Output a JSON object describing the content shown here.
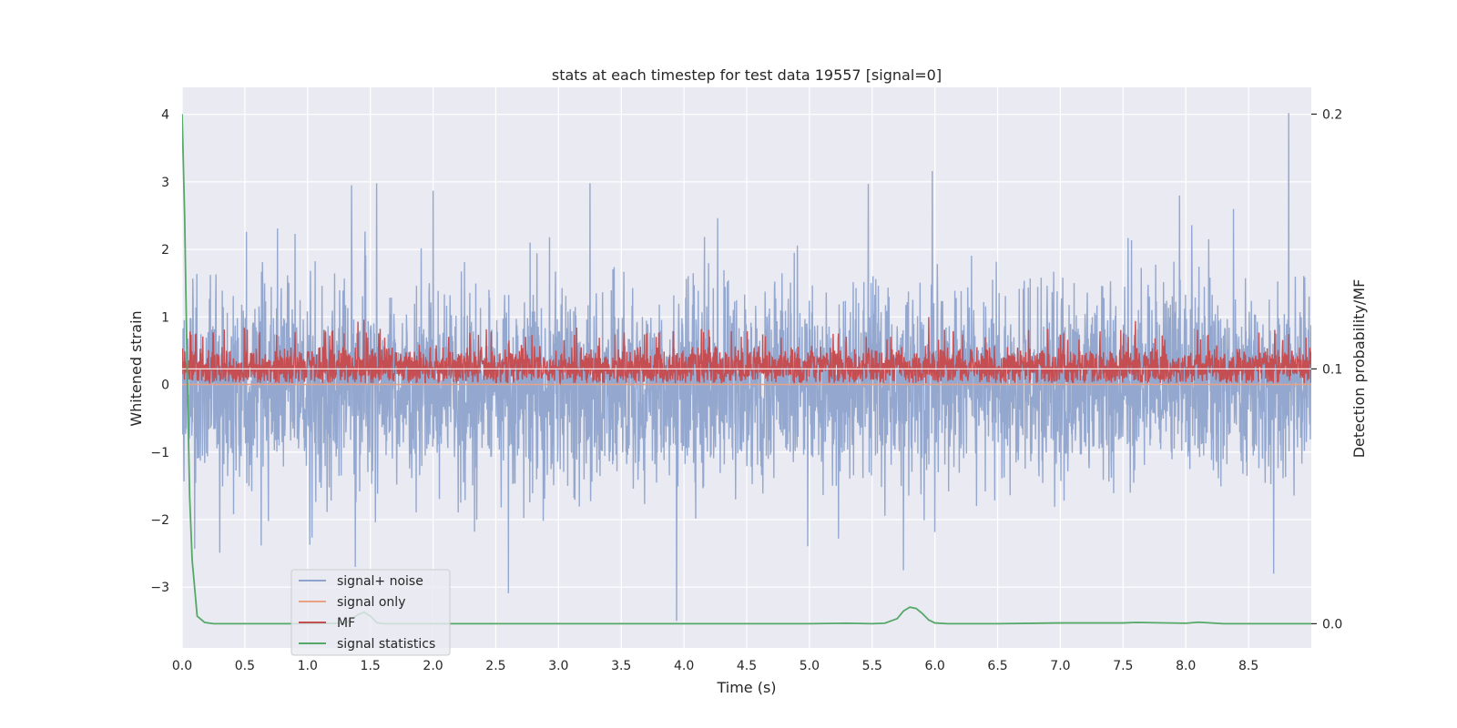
{
  "chart_data": {
    "type": "line",
    "title": "stats at each timestep for test data 19557 [signal=0]",
    "xlabel": "Time (s)",
    "ylabel": "Whitened strain",
    "y2label": "Detection probability/MF",
    "xlim": [
      0.0,
      9.0
    ],
    "ylim": [
      -3.9,
      4.4
    ],
    "y2lim": [
      -0.0095,
      0.2105
    ],
    "x_ticks": [
      "0.0",
      "0.5",
      "1.0",
      "1.5",
      "2.0",
      "2.5",
      "3.0",
      "3.5",
      "4.0",
      "4.5",
      "5.0",
      "5.5",
      "6.0",
      "6.5",
      "7.0",
      "7.5",
      "8.0",
      "8.5"
    ],
    "y_ticks": [
      "−3",
      "−2",
      "−1",
      "0",
      "1",
      "2",
      "3",
      "4"
    ],
    "y2_ticks": [
      "0.0",
      "0.1",
      "0.2"
    ],
    "grid": true,
    "legend_position": "lower-left",
    "series": [
      {
        "name": "signal+ noise",
        "color": "#8fa4cc",
        "axis": "left",
        "description_points": {
          "peaks": [
            [
              0.76,
              2.31
            ],
            [
              1.35,
              2.95
            ],
            [
              1.55,
              2.98
            ],
            [
              2.0,
              2.87
            ],
            [
              3.25,
              2.98
            ],
            [
              5.47,
              2.97
            ],
            [
              5.98,
              3.16
            ],
            [
              7.95,
              2.8
            ],
            [
              8.82,
              4.02
            ]
          ],
          "dips": [
            [
              0.3,
              -2.49
            ],
            [
              1.38,
              -2.7
            ],
            [
              2.6,
              -3.09
            ],
            [
              3.94,
              -3.5
            ],
            [
              5.75,
              -2.75
            ],
            [
              8.7,
              -2.8
            ]
          ],
          "typical_max": 1.5,
          "typical_min": -1.5
        }
      },
      {
        "name": "signal only",
        "color": "#e9a283",
        "axis": "left",
        "x": [
          0.0,
          9.0
        ],
        "y": [
          0.0,
          0.0
        ]
      },
      {
        "name": "MF",
        "color": "#c44e52",
        "axis": "left",
        "description_points": {
          "typical_max": 0.6,
          "typical_min": 0.02,
          "peaks": [
            [
              1.45,
              0.96
            ],
            [
              5.95,
              1.0
            ],
            [
              7.6,
              0.94
            ],
            [
              1.4,
              0.93
            ]
          ]
        }
      },
      {
        "name": "signal statistics",
        "color": "#55a868",
        "axis": "right",
        "x": [
          0.0,
          0.02,
          0.04,
          0.06,
          0.08,
          0.12,
          0.18,
          0.25,
          0.5,
          1.0,
          1.3,
          1.4,
          1.45,
          1.5,
          1.55,
          1.6,
          2.0,
          3.0,
          4.0,
          5.0,
          5.3,
          5.5,
          5.6,
          5.7,
          5.75,
          5.8,
          5.85,
          5.9,
          5.95,
          6.0,
          6.1,
          6.5,
          7.0,
          7.5,
          7.6,
          8.0,
          8.1,
          8.3,
          8.6,
          9.0
        ],
        "y": [
          0.2,
          0.16,
          0.1,
          0.05,
          0.025,
          0.003,
          0.0005,
          0.0,
          0.0,
          0.0,
          0.0002,
          0.0035,
          0.0045,
          0.003,
          0.0005,
          0.0,
          0.0,
          0.0,
          0.0,
          0.0,
          0.0002,
          0.0,
          0.0002,
          0.002,
          0.005,
          0.0065,
          0.006,
          0.004,
          0.0015,
          0.0003,
          0.0,
          0.0,
          0.0003,
          0.0003,
          0.0005,
          0.0002,
          0.0006,
          0.0,
          0.0,
          0.0
        ]
      }
    ]
  }
}
